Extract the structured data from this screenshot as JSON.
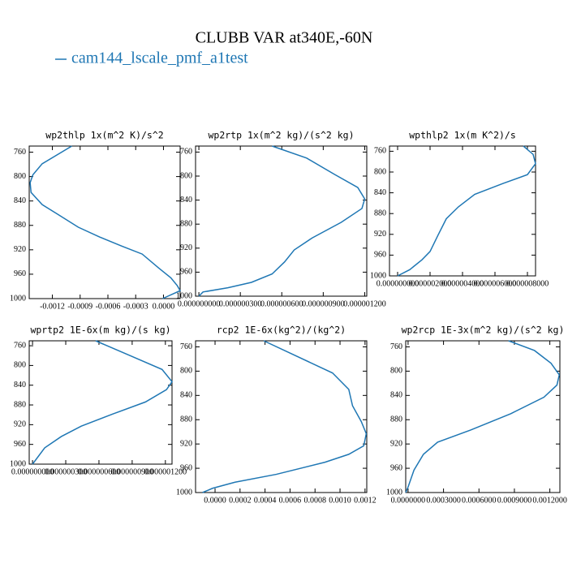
{
  "title": "CLUBB VAR at340E,-60N",
  "chart_data": [
    {
      "type": "line",
      "title": "wp2thlp   1x(m^2 K)/s^2",
      "y": [
        750,
        779,
        797,
        810,
        826,
        846,
        861,
        883,
        899,
        914,
        927,
        950,
        966,
        979,
        987,
        1000
      ],
      "series": [
        {
          "name": "cam144_lscale_pmf_a1test",
          "color": "#1f77b4",
          "values": [
            -0.00099,
            -0.00131,
            -0.00141,
            -0.00144,
            -0.00143,
            -0.00131,
            -0.00115,
            -0.00092,
            -0.00069,
            -0.00045,
            -0.00023,
            -5e-05,
            8e-05,
            0.00015,
            0.00018,
            -1e-05
          ]
        }
      ],
      "xlim": [
        -0.00145,
        0.00018
      ],
      "xticks": [
        -0.0012,
        -0.0009,
        -0.0006,
        -0.0003,
        {
          "value": 0,
          "label": "0.0000"
        }
      ],
      "ylim": [
        1000,
        750
      ],
      "yticks": [
        760,
        800,
        840,
        880,
        920,
        960,
        1000
      ]
    },
    {
      "type": "line",
      "title": "wp2rtp   1x(m^2 kg)/(s^2 kg)",
      "y": [
        750,
        770,
        797,
        819,
        838,
        854,
        877,
        903,
        923,
        943,
        963,
        977,
        986,
        993,
        1000
      ],
      "series": [
        {
          "name": "cam144_lscale_pmf_a1test",
          "color": "#1f77b4",
          "values": [
            5.3e-07,
            7.8e-07,
            9.8e-07,
            1.15e-06,
            1.2e-06,
            1.18e-06,
            1.03e-06,
            8.2e-07,
            6.9e-07,
            6.2e-07,
            5.3e-07,
            3.8e-07,
            2.1e-07,
            3e-08,
            0
          ]
        }
      ],
      "xlim": [
        -2.4e-08,
        1.215e-06
      ],
      "xticks": [
        {
          "value": 0,
          "label": "0.000000000"
        },
        {
          "value": 3e-07,
          "label": "0.000000300"
        },
        {
          "value": 6e-07,
          "label": "0.000000600"
        },
        {
          "value": 9e-07,
          "label": "0.000000900"
        },
        {
          "value": 1.2e-06,
          "label": "0.000001200"
        }
      ],
      "ylim": [
        1000,
        750
      ],
      "yticks": [
        760,
        800,
        840,
        880,
        920,
        960,
        1000
      ]
    },
    {
      "type": "line",
      "title": "wpthlp2   1x(m K^2)/s",
      "y": [
        750,
        766,
        784,
        805,
        822,
        843,
        867,
        890,
        921,
        953,
        969,
        988,
        1000
      ],
      "series": [
        {
          "name": "cam144_lscale_pmf_a1test",
          "color": "#1f77b4",
          "values": [
            7.75e-06,
            8.35e-06,
            8.5e-06,
            8e-06,
            6.5e-06,
            4.75e-06,
            3.75e-06,
            3e-06,
            2.5e-06,
            2e-06,
            1.5e-06,
            7.5e-07,
            0
          ]
        }
      ],
      "xlim": [
        -5e-07,
        8.5e-06
      ],
      "xticks": [
        {
          "value": 0,
          "label": "0.000000000"
        },
        {
          "value": 2e-06,
          "label": "0.000002000"
        },
        {
          "value": 4e-06,
          "label": "0.000004000"
        },
        {
          "value": 6e-06,
          "label": "0.000006000"
        },
        {
          "value": 8e-06,
          "label": "0.000008000"
        }
      ],
      "ylim": [
        1000,
        750
      ],
      "yticks": [
        760,
        800,
        840,
        880,
        920,
        960,
        1000
      ]
    },
    {
      "type": "line",
      "title": "wprtp2   1E-6x(m kg)/(s kg)",
      "y": [
        750,
        780,
        808,
        833,
        849,
        874,
        898,
        923,
        944,
        967,
        1000
      ],
      "series": [
        {
          "name": "cam144_lscale_pmf_a1test",
          "color": "#1f77b4",
          "values": [
            5.7e-07,
            8.8e-07,
            1.17e-06,
            1.26e-06,
            1.21e-06,
            1.02e-06,
            7.3e-07,
            4.4e-07,
            2.6e-07,
            1.1e-07,
            0
          ]
        }
      ],
      "xlim": [
        -3e-08,
        1.26e-06
      ],
      "xticks": [
        {
          "value": 0,
          "label": "0.000000000"
        },
        {
          "value": 3e-07,
          "label": "0.000000300"
        },
        {
          "value": 6e-07,
          "label": "0.000000600"
        },
        {
          "value": 9e-07,
          "label": "0.000000900"
        },
        {
          "value": 1.2e-06,
          "label": "0.000001200"
        }
      ],
      "ylim": [
        1000,
        750
      ],
      "yticks": [
        760,
        800,
        840,
        880,
        920,
        960,
        1000
      ]
    },
    {
      "type": "line",
      "title": "rcp2   1E-6x(kg^2)/(kg^2)",
      "y": [
        750,
        803,
        830,
        857,
        883,
        903,
        923,
        937,
        950,
        970,
        983,
        993,
        1000
      ],
      "series": [
        {
          "name": "cam144_lscale_pmf_a1test",
          "color": "#1f77b4",
          "values": [
            0.00039,
            0.00094,
            0.00107,
            0.0011,
            0.00117,
            0.00121,
            0.00119,
            0.00107,
            0.00088,
            0.00049,
            0.00016,
            -2e-05,
            -0.0001
          ]
        }
      ],
      "xlim": [
        -0.000156,
        0.001214
      ],
      "xticks": [
        {
          "value": 0,
          "label": "0.0000"
        },
        0.0002,
        0.0004,
        0.0006,
        0.0008,
        {
          "value": 0.001,
          "label": "0.0010"
        },
        0.0012
      ],
      "ylim": [
        1000,
        750
      ],
      "yticks": [
        760,
        800,
        840,
        880,
        920,
        960,
        1000
      ]
    },
    {
      "type": "line",
      "title": "wp2rcp   1E-3x(m^2 kg)/(s^2 kg)",
      "y": [
        750,
        766,
        787,
        806,
        823,
        843,
        870,
        897,
        917,
        937,
        963,
        991,
        1000
      ],
      "series": [
        {
          "name": "cam144_lscale_pmf_a1test",
          "color": "#1f77b4",
          "values": [
            0.00085,
            0.00107,
            0.00121,
            0.00128,
            0.00126,
            0.00115,
            0.00087,
            0.00053,
            0.00025,
            0.00013,
            5e-05,
            0,
            -2e-05
          ]
        }
      ],
      "xlim": [
        -2e-05,
        0.001285
      ],
      "xticks": [
        {
          "value": 0,
          "label": "0.0000000"
        },
        {
          "value": 0.0003,
          "label": "0.0003000"
        },
        {
          "value": 0.0006,
          "label": "0.0006000"
        },
        {
          "value": 0.0009,
          "label": "0.0009000"
        },
        {
          "value": 0.0012,
          "label": "0.0012000"
        }
      ],
      "ylim": [
        1000,
        750
      ],
      "yticks": [
        760,
        800,
        840,
        880,
        920,
        960,
        1000
      ]
    }
  ]
}
